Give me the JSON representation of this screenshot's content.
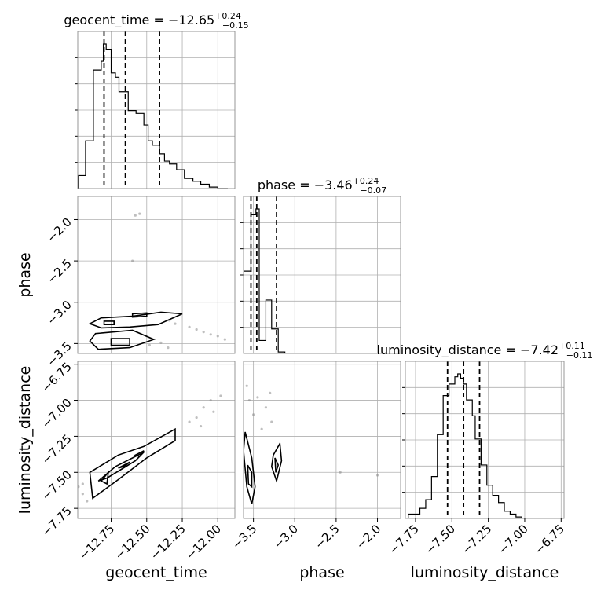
{
  "chart_data": {
    "type": "corner",
    "parameters": [
      "geocent_time",
      "phase",
      "luminosity_distance"
    ],
    "axis_labels": {
      "geocent_time": "geocent_time",
      "phase": "phase",
      "luminosity_distance": "luminosity_distance"
    },
    "ranges": {
      "geocent_time": [
        -12.985,
        -11.88
      ],
      "phase": [
        -3.62,
        -1.72
      ],
      "luminosity_distance": [
        -7.82,
        -6.73
      ]
    },
    "ticks": {
      "geocent_time": {
        "values": [
          -12.75,
          -12.5,
          -12.25,
          -12.0
        ],
        "labels": [
          "−12.75",
          "−12.50",
          "−12.25",
          "−12.00"
        ]
      },
      "phase": {
        "values": [
          -3.5,
          -3.0,
          -2.5,
          -2.0
        ],
        "labels": [
          "−3.5",
          "−3.0",
          "−2.5",
          "−2.0"
        ]
      },
      "luminosity_distance": {
        "values": [
          -7.75,
          -7.5,
          -7.25,
          -7.0,
          -6.75
        ],
        "labels": [
          "−7.75",
          "−7.50",
          "−7.25",
          "−7.00",
          "−6.75"
        ]
      }
    },
    "marginals": [
      {
        "param": "geocent_time",
        "title_main": "geocent_time = −12.65",
        "title_sup": "+0.24",
        "title_sub": "−0.15",
        "quantiles": [
          -12.8,
          -12.65,
          -12.41
        ],
        "bin_edges": [
          -12.98,
          -12.93,
          -12.875,
          -12.82,
          -12.805,
          -12.785,
          -12.75,
          -12.72,
          -12.695,
          -12.665,
          -12.63,
          -12.575,
          -12.52,
          -12.49,
          -12.46,
          -12.41,
          -12.375,
          -12.34,
          -12.29,
          -12.235,
          -12.175,
          -12.12,
          -12.06,
          -12.0,
          -11.93
        ],
        "counts": [
          9,
          33,
          82,
          88,
          100,
          96,
          80,
          77,
          67,
          67,
          54,
          52,
          44,
          33,
          30,
          24,
          19,
          17,
          13,
          7,
          5,
          3,
          1,
          0
        ]
      },
      {
        "param": "phase",
        "title_main": "phase = −3.46",
        "title_sup": "+0.24",
        "title_sub": "−0.07",
        "quantiles": [
          -3.53,
          -3.46,
          -3.22
        ],
        "bin_edges": [
          -3.62,
          -3.53,
          -3.47,
          -3.43,
          -3.35,
          -3.28,
          -3.2,
          -3.12,
          -3.04,
          -2.96
        ],
        "counts": [
          57,
          96,
          100,
          9,
          37,
          17,
          1,
          0,
          0
        ]
      },
      {
        "param": "luminosity_distance",
        "title_main": "luminosity_distance = −7.42",
        "title_sup": "+0.11",
        "title_sub": "−0.11",
        "quantiles": [
          -7.53,
          -7.42,
          -7.31
        ],
        "bin_edges": [
          -7.8,
          -7.72,
          -7.68,
          -7.64,
          -7.6,
          -7.56,
          -7.52,
          -7.48,
          -7.46,
          -7.44,
          -7.42,
          -7.4,
          -7.36,
          -7.34,
          -7.3,
          -7.26,
          -7.22,
          -7.18,
          -7.14,
          -7.1,
          -7.06,
          -7.02,
          -6.96
        ],
        "counts": [
          3,
          7,
          13,
          29,
          58,
          85,
          93,
          98,
          100,
          97,
          93,
          82,
          71,
          55,
          37,
          23,
          16,
          11,
          5,
          3,
          1,
          0
        ]
      }
    ],
    "joint": [
      {
        "x": "geocent_time",
        "y": "phase",
        "contours": [
          [
            [
              -12.82,
              -3.19
            ],
            [
              -12.6,
              -3.17
            ],
            [
              -12.4,
              -3.12
            ],
            [
              -12.25,
              -3.14
            ],
            [
              -12.42,
              -3.27
            ],
            [
              -12.62,
              -3.3
            ],
            [
              -12.82,
              -3.31
            ],
            [
              -12.9,
              -3.26
            ]
          ],
          [
            [
              -12.86,
              -3.38
            ],
            [
              -12.6,
              -3.34
            ],
            [
              -12.45,
              -3.45
            ],
            [
              -12.62,
              -3.55
            ],
            [
              -12.84,
              -3.57
            ],
            [
              -12.9,
              -3.47
            ]
          ],
          [
            [
              -12.8,
              -3.23
            ],
            [
              -12.73,
              -3.23
            ],
            [
              -12.73,
              -3.27
            ],
            [
              -12.8,
              -3.27
            ]
          ],
          [
            [
              -12.6,
              -3.14
            ],
            [
              -12.5,
              -3.13
            ],
            [
              -12.5,
              -3.17
            ],
            [
              -12.6,
              -3.18
            ]
          ],
          [
            [
              -12.75,
              -3.44
            ],
            [
              -12.62,
              -3.44
            ],
            [
              -12.62,
              -3.52
            ],
            [
              -12.75,
              -3.52
            ]
          ]
        ],
        "scatter": [
          [
            -12.3,
            -3.26
          ],
          [
            -12.2,
            -3.3
          ],
          [
            -12.1,
            -3.36
          ],
          [
            -12.0,
            -3.41
          ],
          [
            -11.95,
            -3.45
          ],
          [
            -12.34,
            -3.22
          ],
          [
            -12.15,
            -3.33
          ],
          [
            -12.05,
            -3.39
          ],
          [
            -12.48,
            -3.52
          ],
          [
            -12.4,
            -3.49
          ],
          [
            -12.35,
            -3.55
          ],
          [
            -12.55,
            -1.93
          ],
          [
            -12.6,
            -2.5
          ],
          [
            -12.58,
            -1.95
          ]
        ]
      },
      {
        "x": "geocent_time",
        "y": "luminosity_distance",
        "contours": [
          [
            [
              -12.88,
              -7.68
            ],
            [
              -12.9,
              -7.5
            ],
            [
              -12.7,
              -7.38
            ],
            [
              -12.52,
              -7.32
            ],
            [
              -12.3,
              -7.2
            ],
            [
              -12.3,
              -7.28
            ],
            [
              -12.5,
              -7.4
            ],
            [
              -12.7,
              -7.55
            ]
          ],
          [
            [
              -12.84,
              -7.56
            ],
            [
              -12.72,
              -7.46
            ],
            [
              -12.52,
              -7.36
            ],
            [
              -12.58,
              -7.42
            ],
            [
              -12.78,
              -7.54
            ]
          ],
          [
            [
              -12.7,
              -7.47
            ],
            [
              -12.62,
              -7.43
            ],
            [
              -12.66,
              -7.46
            ]
          ],
          [
            [
              -12.58,
              -7.38
            ],
            [
              -12.52,
              -7.35
            ],
            [
              -12.55,
              -7.39
            ]
          ],
          [
            [
              -12.82,
              -7.56
            ],
            [
              -12.77,
              -7.5
            ],
            [
              -12.78,
              -7.58
            ]
          ]
        ],
        "scatter": [
          [
            -12.2,
            -7.15
          ],
          [
            -12.15,
            -7.12
          ],
          [
            -12.1,
            -7.05
          ],
          [
            -12.05,
            -7.0
          ],
          [
            -11.98,
            -6.97
          ],
          [
            -12.12,
            -7.18
          ],
          [
            -12.03,
            -7.08
          ],
          [
            -12.95,
            -7.65
          ],
          [
            -12.98,
            -7.6
          ],
          [
            -12.92,
            -7.7
          ],
          [
            -12.95,
            -7.58
          ]
        ]
      },
      {
        "x": "phase",
        "y": "luminosity_distance",
        "contours": [
          [
            [
              -3.6,
              -7.22
            ],
            [
              -3.52,
              -7.4
            ],
            [
              -3.48,
              -7.6
            ],
            [
              -3.52,
              -7.72
            ],
            [
              -3.58,
              -7.6
            ],
            [
              -3.62,
              -7.35
            ]
          ],
          [
            [
              -3.57,
              -7.45
            ],
            [
              -3.52,
              -7.5
            ],
            [
              -3.52,
              -7.6
            ],
            [
              -3.56,
              -7.58
            ]
          ],
          [
            [
              -3.26,
              -7.38
            ],
            [
              -3.18,
              -7.3
            ],
            [
              -3.16,
              -7.42
            ],
            [
              -3.22,
              -7.56
            ],
            [
              -3.28,
              -7.46
            ]
          ],
          [
            [
              -3.24,
              -7.4
            ],
            [
              -3.2,
              -7.45
            ],
            [
              -3.23,
              -7.5
            ]
          ]
        ],
        "scatter": [
          [
            -3.55,
            -7.0
          ],
          [
            -3.5,
            -7.1
          ],
          [
            -3.4,
            -7.2
          ],
          [
            -3.35,
            -7.05
          ],
          [
            -3.3,
            -6.95
          ],
          [
            -3.45,
            -6.98
          ],
          [
            -3.28,
            -7.15
          ],
          [
            -3.58,
            -6.9
          ],
          [
            -2.45,
            -7.5
          ],
          [
            -2.0,
            -7.52
          ]
        ]
      }
    ],
    "grid": true
  }
}
